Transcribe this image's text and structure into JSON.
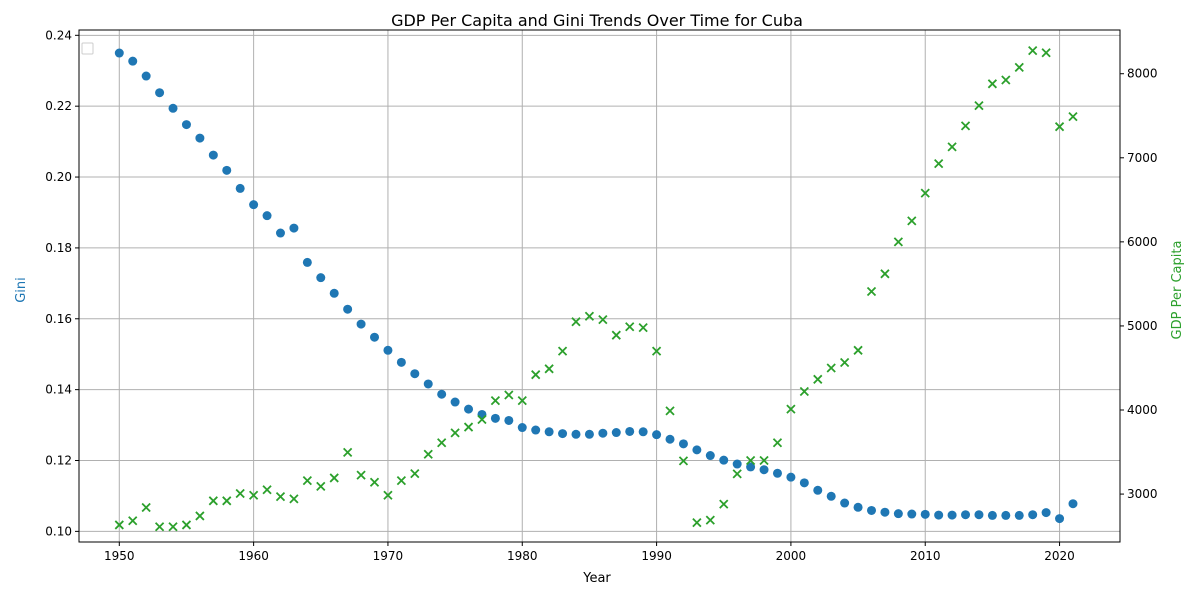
{
  "chart_data": {
    "type": "scatter",
    "title": "GDP Per Capita and Gini Trends Over Time for Cuba",
    "xlabel": "Year",
    "ylabel_left": "Gini",
    "ylabel_right": "GDP Per Capita",
    "xlim": [
      1947,
      2024.5
    ],
    "ylim_left": [
      0.097,
      0.2415
    ],
    "ylim_right": [
      2430,
      8520
    ],
    "x_ticks": [
      1950,
      1960,
      1970,
      1980,
      1990,
      2000,
      2010,
      2020
    ],
    "y_left_ticks": [
      0.1,
      0.12,
      0.14,
      0.16,
      0.18,
      0.2,
      0.22,
      0.24
    ],
    "y_left_tick_labels": [
      "0.10",
      "0.12",
      "0.14",
      "0.16",
      "0.18",
      "0.20",
      "0.22",
      "0.24"
    ],
    "y_right_ticks": [
      3000,
      4000,
      5000,
      6000,
      7000,
      8000
    ],
    "y_right_tick_labels": [
      "3000",
      "4000",
      "5000",
      "6000",
      "7000",
      "8000"
    ],
    "grid": true,
    "legend": "top-left (empty)",
    "colors": {
      "gini": "#1f77b4",
      "gdp": "#2ca02c"
    },
    "series": [
      {
        "name": "Gini",
        "axis": "left",
        "marker": "circle",
        "x": [
          1950,
          1951,
          1952,
          1953,
          1954,
          1955,
          1956,
          1957,
          1958,
          1959,
          1960,
          1961,
          1962,
          1963,
          1964,
          1965,
          1966,
          1967,
          1968,
          1969,
          1970,
          1971,
          1972,
          1973,
          1974,
          1975,
          1976,
          1977,
          1978,
          1979,
          1980,
          1981,
          1982,
          1983,
          1984,
          1985,
          1986,
          1987,
          1988,
          1989,
          1990,
          1991,
          1992,
          1993,
          1994,
          1995,
          1996,
          1997,
          1998,
          1999,
          2000,
          2001,
          2002,
          2003,
          2004,
          2005,
          2006,
          2007,
          2008,
          2009,
          2010,
          2011,
          2012,
          2013,
          2014,
          2015,
          2016,
          2017,
          2018,
          2019,
          2020,
          2021
        ],
        "values": [
          0.235,
          0.2327,
          0.2285,
          0.2238,
          0.2194,
          0.2148,
          0.211,
          0.2062,
          0.2019,
          0.1968,
          0.1922,
          0.1891,
          0.1842,
          0.1856,
          0.1759,
          0.1716,
          0.1672,
          0.1627,
          0.1585,
          0.1548,
          0.1511,
          0.1477,
          0.1445,
          0.1416,
          0.1387,
          0.1365,
          0.1345,
          0.133,
          0.1319,
          0.1313,
          0.1293,
          0.1286,
          0.1281,
          0.1276,
          0.1274,
          0.1274,
          0.1277,
          0.1279,
          0.1282,
          0.1281,
          0.1273,
          0.126,
          0.1247,
          0.123,
          0.1214,
          0.1201,
          0.119,
          0.1182,
          0.1174,
          0.1164,
          0.1153,
          0.1137,
          0.1116,
          0.1099,
          0.108,
          0.1068,
          0.1059,
          0.1054,
          0.105,
          0.1049,
          0.1048,
          0.1046,
          0.1046,
          0.1047,
          0.1047,
          0.1045,
          0.1045,
          0.1045,
          0.1047,
          0.1053,
          0.1036,
          0.1078
        ]
      },
      {
        "name": "GDP Per Capita",
        "axis": "right",
        "marker": "x",
        "x": [
          1950,
          1951,
          1952,
          1953,
          1954,
          1955,
          1956,
          1957,
          1958,
          1959,
          1960,
          1961,
          1962,
          1963,
          1964,
          1965,
          1966,
          1967,
          1968,
          1969,
          1970,
          1971,
          1972,
          1973,
          1974,
          1975,
          1976,
          1977,
          1978,
          1979,
          1980,
          1981,
          1982,
          1983,
          1984,
          1985,
          1986,
          1987,
          1988,
          1989,
          1990,
          1991,
          1992,
          1993,
          1994,
          1995,
          1996,
          1997,
          1998,
          1999,
          2000,
          2001,
          2002,
          2003,
          2004,
          2005,
          2006,
          2007,
          2008,
          2009,
          2010,
          2011,
          2012,
          2013,
          2014,
          2015,
          2016,
          2017,
          2018,
          2019,
          2020,
          2021
        ],
        "values": [
          2633,
          2683,
          2840,
          2611,
          2611,
          2633,
          2740,
          2920,
          2920,
          3007,
          2986,
          3052,
          2970,
          2943,
          3160,
          3092,
          3192,
          3496,
          3225,
          3141,
          2986,
          3160,
          3243,
          3474,
          3610,
          3728,
          3797,
          3887,
          4111,
          4178,
          4111,
          4420,
          4490,
          4700,
          5050,
          5115,
          5075,
          4890,
          4990,
          4980,
          4700,
          3990,
          3395,
          2660,
          2690,
          2880,
          3240,
          3400,
          3400,
          3610,
          4010,
          4220,
          4365,
          4500,
          4565,
          4710,
          5410,
          5620,
          6000,
          6250,
          6580,
          6930,
          7130,
          7380,
          7620,
          7880,
          7925,
          8075,
          8275,
          8250,
          7370,
          7490
        ]
      }
    ]
  }
}
